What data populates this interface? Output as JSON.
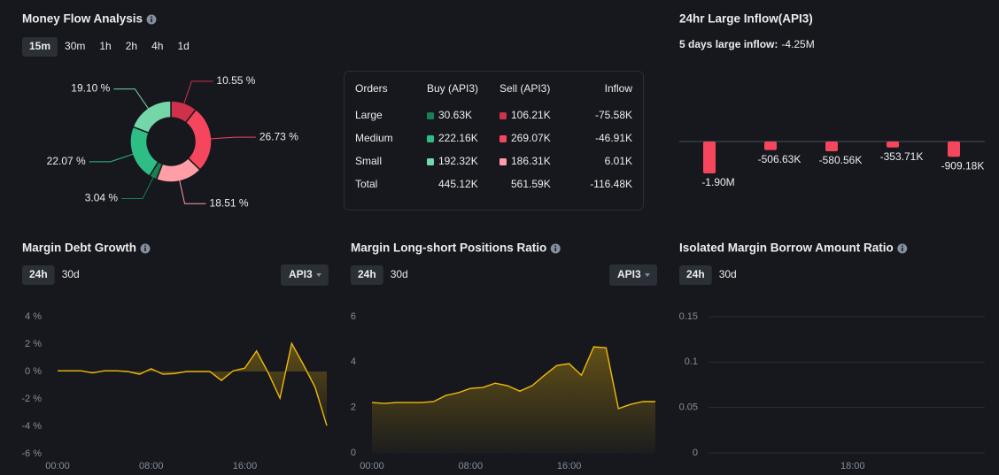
{
  "chart_data": [
    {
      "type": "pie",
      "title": "Money Flow Analysis",
      "tabs": [
        "15m",
        "30m",
        "1h",
        "2h",
        "4h",
        "1d"
      ],
      "selected_tab": 0,
      "donut": true,
      "values": [
        10.55,
        26.73,
        18.51,
        3.04,
        22.07,
        19.1
      ],
      "value_labels": [
        "10.55 %",
        "26.73 %",
        "18.51 %",
        "3.04 %",
        "22.07 %",
        "19.10 %"
      ],
      "colors": [
        "#cf304a",
        "#f6465d",
        "#ff9ea6",
        "#1a7f56",
        "#2ebd85",
        "#74d6a9"
      ]
    },
    {
      "type": "bar",
      "title": "24hr Large Inflow(API3)",
      "subtitle": "5 days large inflow:",
      "subtitle_value": "-4.25M",
      "values": [
        -1900000,
        -506630,
        -580560,
        -353710,
        -909180
      ],
      "value_labels": [
        "-1.90M",
        "-506.63K",
        "-580.56K",
        "-353.71K",
        "-909.18K"
      ],
      "color": "#f6465d"
    },
    {
      "type": "line",
      "title": "Margin Debt Growth",
      "tabs": [
        "24h",
        "30d"
      ],
      "selected_tab": 0,
      "dropdown": "API3",
      "color": "#f0b90b",
      "grid": false,
      "x": [
        0,
        1,
        2,
        3,
        4,
        5,
        6,
        7,
        8,
        9,
        10,
        11,
        12,
        13,
        14,
        15,
        16,
        17,
        18,
        19,
        20,
        21,
        22,
        23
      ],
      "values": [
        0.05,
        0.05,
        0.05,
        -0.1,
        0.05,
        0.05,
        0,
        -0.2,
        0.2,
        -0.2,
        -0.15,
        0,
        0,
        0,
        -0.65,
        0.05,
        0.25,
        1.5,
        -0.1,
        -1.95,
        2.05,
        0.5,
        -1.15,
        -3.95
      ],
      "xlim": [
        0,
        23
      ],
      "xticks": [
        {
          "value": 0,
          "label": "00:00"
        },
        {
          "value": 8,
          "label": "08:00"
        },
        {
          "value": 16,
          "label": "16:00"
        }
      ],
      "ylim": [
        -6,
        4
      ],
      "yticks": [
        {
          "value": 4,
          "label": "4 %"
        },
        {
          "value": 2,
          "label": "2 %"
        },
        {
          "value": 0,
          "label": "0 %"
        },
        {
          "value": -2,
          "label": "-2 %"
        },
        {
          "value": -4,
          "label": "-4 %"
        },
        {
          "value": -6,
          "label": "-6 %"
        }
      ]
    },
    {
      "type": "line",
      "title": "Margin Long-short Positions Ratio",
      "tabs": [
        "24h",
        "30d"
      ],
      "selected_tab": 0,
      "dropdown": "API3",
      "color": "#f0b90b",
      "grid": false,
      "x": [
        0,
        1,
        2,
        3,
        4,
        5,
        6,
        7,
        8,
        9,
        10,
        11,
        12,
        13,
        14,
        15,
        16,
        17,
        18,
        19,
        20,
        21,
        22,
        23
      ],
      "values": [
        2.22,
        2.18,
        2.22,
        2.22,
        2.22,
        2.26,
        2.53,
        2.65,
        2.84,
        2.88,
        3.07,
        2.96,
        2.72,
        2.96,
        3.42,
        3.85,
        3.93,
        3.42,
        4.67,
        4.63,
        1.95,
        2.14,
        2.26,
        2.26
      ],
      "xlim": [
        0,
        23
      ],
      "xticks": [
        {
          "value": 0,
          "label": "00:00"
        },
        {
          "value": 8,
          "label": "08:00"
        },
        {
          "value": 16,
          "label": "16:00"
        }
      ],
      "ylim": [
        0,
        6
      ],
      "yticks": [
        6,
        4,
        2,
        0
      ]
    },
    {
      "type": "line",
      "title": "Isolated Margin Borrow Amount Ratio",
      "tabs": [
        "24h",
        "30d"
      ],
      "selected_tab": 0,
      "color": "#f0b90b",
      "grid": true,
      "x": [],
      "values": [],
      "xlim": [
        6,
        29
      ],
      "xticks": [
        {
          "value": 18,
          "label": "18:00"
        }
      ],
      "ylim": [
        0,
        0.15
      ],
      "yticks": [
        0.15,
        0.1,
        0.05,
        0
      ]
    }
  ],
  "orders_table": {
    "headers": [
      "Orders",
      "Buy (API3)",
      "Sell (API3)",
      "Inflow"
    ],
    "rows": [
      [
        "Large",
        "30.63K",
        "106.21K",
        "-75.58K"
      ],
      [
        "Medium",
        "222.16K",
        "269.07K",
        "-46.91K"
      ],
      [
        "Small",
        "192.32K",
        "186.31K",
        "6.01K"
      ],
      [
        "Total",
        "445.12K",
        "561.59K",
        "-116.48K"
      ]
    ],
    "swatch_colors": [
      [
        "#1a7f56",
        "#cf304a"
      ],
      [
        "#2ebd85",
        "#f6465d"
      ],
      [
        "#74d6a9",
        "#ff9ea6"
      ]
    ]
  }
}
